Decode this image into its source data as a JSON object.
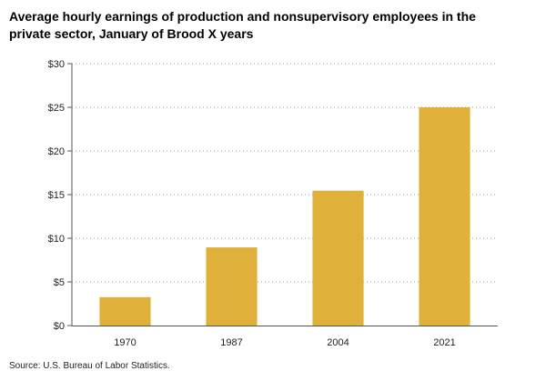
{
  "chart_data": {
    "type": "bar",
    "title": "Average hourly earnings of production and nonsupervisory employees in the private sector, January of Brood X years",
    "categories": [
      "1970",
      "1987",
      "2004",
      "2021"
    ],
    "values": [
      3.25,
      8.95,
      15.45,
      25.0
    ],
    "ylim": [
      0,
      30
    ],
    "yticks": [
      0,
      5,
      10,
      15,
      20,
      25,
      30
    ],
    "ytick_labels": [
      "$0",
      "$5",
      "$10",
      "$15",
      "$20",
      "$25",
      "$30"
    ],
    "xlabel": "",
    "ylabel": "",
    "grid": "horizontal dotted",
    "bar_color": "#dfb13b",
    "grid_color": "#9a9a9a",
    "axis_color": "#555555"
  },
  "source": "Source: U.S. Bureau of Labor Statistics."
}
